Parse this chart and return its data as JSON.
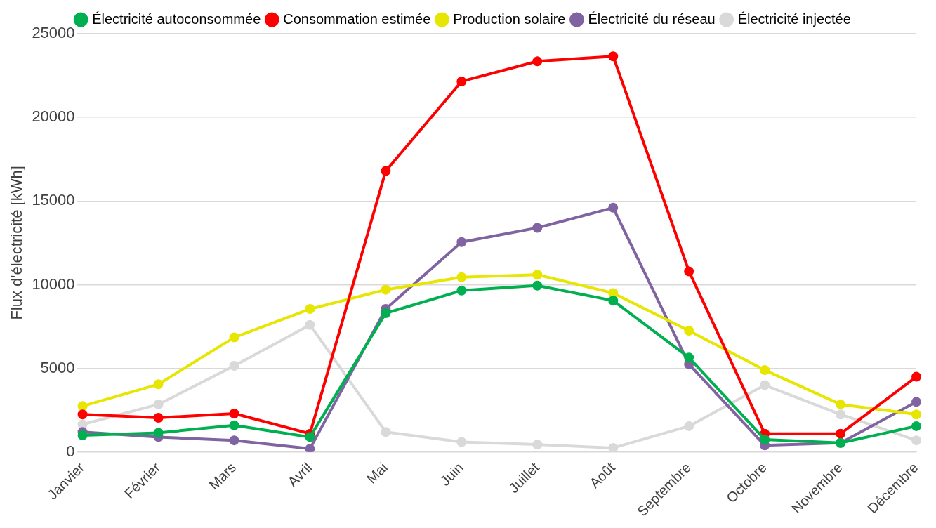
{
  "chart_data": {
    "type": "line",
    "ylabel": "Flux d'électricité [kWh]",
    "categories": [
      "Janvier",
      "Février",
      "Mars",
      "Avril",
      "Mai",
      "Juin",
      "Juillet",
      "Août",
      "Septembre",
      "Octobre",
      "Novembre",
      "Décembre"
    ],
    "series": [
      {
        "name": "Électricité autoconsommée",
        "color": "#00b050",
        "values": [
          1000,
          1150,
          1600,
          900,
          8300,
          9650,
          9950,
          9050,
          5650,
          750,
          550,
          1550
        ]
      },
      {
        "name": "Consommation estimée",
        "color": "#ff0000",
        "values": [
          2250,
          2050,
          2300,
          1100,
          16800,
          22150,
          23350,
          23650,
          10800,
          1100,
          1100,
          4500
        ]
      },
      {
        "name": "Production solaire",
        "color": "#e6e600",
        "values": [
          2750,
          4050,
          6850,
          8550,
          9700,
          10450,
          10600,
          9500,
          7250,
          4900,
          2850,
          2250
        ]
      },
      {
        "name": "Électricité du réseau",
        "color": "#8064a2",
        "values": [
          1200,
          900,
          700,
          200,
          8550,
          12550,
          13400,
          14600,
          5250,
          400,
          550,
          3000
        ]
      },
      {
        "name": "Électricité injectée",
        "color": "#d9d9d9",
        "values": [
          1650,
          2850,
          5150,
          7600,
          1200,
          600,
          450,
          250,
          1550,
          4000,
          2250,
          700
        ]
      }
    ],
    "ylim": [
      0,
      25000
    ],
    "yticks": [
      0,
      5000,
      10000,
      15000,
      20000,
      25000
    ],
    "grid": "y",
    "legend": "top",
    "marker": "circle",
    "line_style": "solid"
  }
}
